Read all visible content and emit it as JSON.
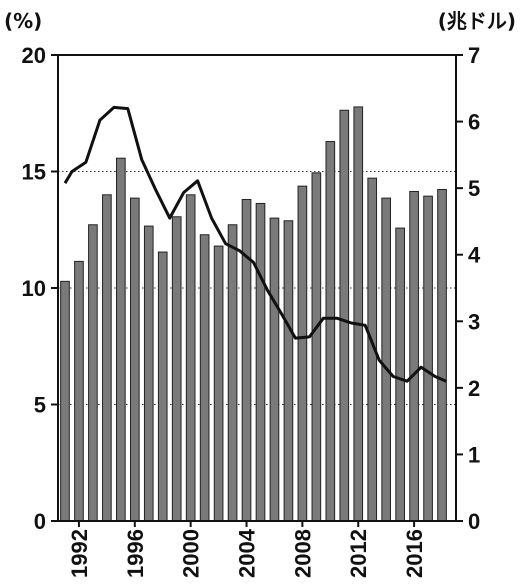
{
  "chart_data": {
    "type": "bar+line",
    "left_unit": "(%)",
    "right_unit": "(兆ドル)",
    "left_ylim": [
      0,
      20
    ],
    "left_ticks": [
      "0",
      "5",
      "10",
      "15",
      "20"
    ],
    "right_ylim": [
      0,
      7
    ],
    "right_ticks": [
      "0",
      "1",
      "2",
      "3",
      "4",
      "5",
      "6",
      "7"
    ],
    "x_ticks": [
      "1992",
      "1996",
      "2000",
      "2004",
      "2008",
      "2012",
      "2016"
    ],
    "grid": "horizontal dotted at left-axis 5, 10, 15",
    "bar_color": "#7a7a7a",
    "line_color": "#111111",
    "series": [
      {
        "kind": "bar",
        "axis": "right",
        "x": [
          1991,
          1992,
          1993,
          1994,
          1995,
          1996,
          1997,
          1998,
          1999,
          2000,
          2001,
          2002,
          2003,
          2004,
          2005,
          2006,
          2007,
          2008,
          2009,
          2010,
          2011,
          2012,
          2013,
          2014,
          2015,
          2016,
          2017,
          2018
        ],
        "values": [
          3.6,
          3.9,
          4.45,
          4.9,
          5.45,
          4.85,
          4.43,
          4.04,
          4.57,
          4.9,
          4.3,
          4.13,
          4.45,
          4.83,
          4.77,
          4.55,
          4.51,
          5.03,
          5.23,
          5.7,
          6.17,
          6.22,
          5.15,
          4.85,
          4.4,
          4.95,
          4.88,
          4.98
        ]
      },
      {
        "kind": "line",
        "axis": "left",
        "x": [
          1991,
          1991.5,
          1992.5,
          1993.5,
          1994.5,
          1995.5,
          1996.5,
          1997.5,
          1998.5,
          1999.5,
          2000.5,
          2001.5,
          2002.5,
          2003.5,
          2004.5,
          2005.5,
          2006.5,
          2007.5,
          2008.5,
          2009.5,
          2010.5,
          2011.5,
          2012.5,
          2013.5,
          2014.5,
          2015.5,
          2016.5,
          2017.5,
          2018.3
        ],
        "values": [
          14.5,
          15.0,
          15.4,
          17.2,
          17.75,
          17.7,
          15.5,
          14.2,
          13.0,
          14.1,
          14.6,
          13.0,
          11.9,
          11.6,
          11.1,
          9.9,
          8.9,
          7.85,
          7.9,
          8.7,
          8.7,
          8.5,
          8.4,
          6.9,
          6.2,
          6.0,
          6.6,
          6.2,
          6.0
        ]
      }
    ]
  }
}
